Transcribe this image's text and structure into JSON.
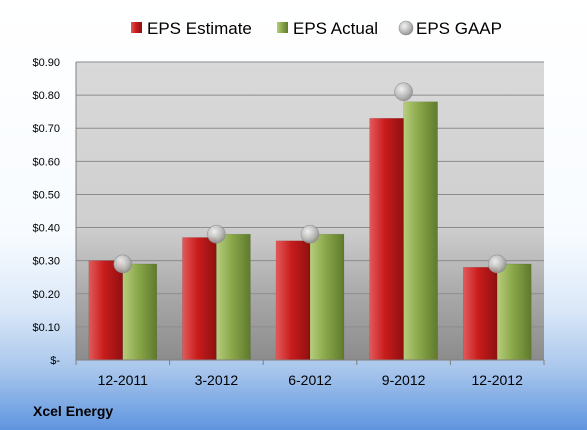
{
  "chart_data": {
    "type": "bar",
    "categories": [
      "12-2011",
      "3-2012",
      "6-2012",
      "9-2012",
      "12-2012"
    ],
    "series": [
      {
        "name": "EPS Estimate",
        "kind": "bar",
        "color": "#c81c1c",
        "values": [
          0.3,
          0.37,
          0.36,
          0.73,
          0.28
        ]
      },
      {
        "name": "EPS Actual",
        "kind": "bar",
        "color": "#8aa84a",
        "values": [
          0.29,
          0.38,
          0.38,
          0.78,
          0.29
        ]
      },
      {
        "name": "EPS GAAP",
        "kind": "marker",
        "color": "#b8b8b8",
        "values": [
          0.29,
          0.38,
          0.38,
          0.81,
          0.29
        ]
      }
    ],
    "ylim": [
      0,
      0.9
    ],
    "yticks": [
      {
        "value": 0,
        "label": "$-"
      },
      {
        "value": 0.1,
        "label": "$0.10"
      },
      {
        "value": 0.2,
        "label": "$0.20"
      },
      {
        "value": 0.3,
        "label": "$0.30"
      },
      {
        "value": 0.4,
        "label": "$0.40"
      },
      {
        "value": 0.5,
        "label": "$0.50"
      },
      {
        "value": 0.6,
        "label": "$0.60"
      },
      {
        "value": 0.7,
        "label": "$0.70"
      },
      {
        "value": 0.8,
        "label": "$0.80"
      },
      {
        "value": 0.9,
        "label": "$0.90"
      }
    ],
    "grid": true,
    "legend_position": "top",
    "xlabel": "",
    "ylabel": ""
  },
  "footer": {
    "company": "Xcel Energy"
  }
}
